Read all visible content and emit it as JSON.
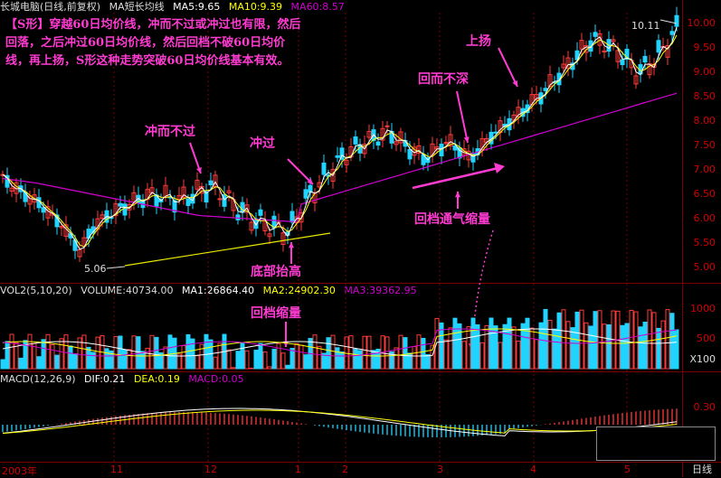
{
  "header": {
    "stock_name": "长城电脑(日线,前复权)",
    "ma_label": "MA短长均线",
    "ma5": "MA5:9.65",
    "ma10": "MA10:9.39",
    "ma60": "MA60:8.57"
  },
  "vol_header": {
    "vol": "VOL2(5,10,20)",
    "volume": "VOLUME:40734.00",
    "ma1": "MA1:26864.40",
    "ma2": "MA2:24902.30",
    "ma3": "MA3:39362.95"
  },
  "macd_header": {
    "macd": "MACD(12,26,9)",
    "dif": "DIF:0.21",
    "dea": "DEA:0.19",
    "macd_val": "MACD:0.05"
  },
  "axis": {
    "price_ticks": [
      "10.00",
      "9.50",
      "9.00",
      "8.50",
      "8.00",
      "7.50",
      "7.00",
      "6.50",
      "6.00",
      "5.50",
      "5.00"
    ],
    "vol_ticks": [
      "1000",
      "500"
    ],
    "vol_multiplier": "X100",
    "macd_tick": "0.30"
  },
  "labels": {
    "note": "【S形】穿越60日均价线，冲而不过或冲过也有限，然后回落，之后冲过60日均价线，然后回档不破60日均价线，再上扬，S形这种走势突破60日均价线基本有效。",
    "chong_er_bu_guo": "冲而不过",
    "chong_guo": "冲过",
    "di_bu_tai_gao": "底部抬高",
    "hui_er_bu_shen": "回而不深",
    "shang_yang": "上扬",
    "hui_dang_tong_qi": "回档通气缩量",
    "hui_dang_suo_liang": "回档缩量",
    "low_price": "5.06",
    "high_price": "10.11"
  },
  "footer": {
    "year": "2003年",
    "months": [
      "11",
      "12",
      "1",
      "2",
      "3",
      "4",
      "5"
    ],
    "period": "日线"
  },
  "colors": {
    "up": "#ff3b3b",
    "down": "#21d4ff",
    "ma5": "#ffffff",
    "ma10": "#ffff00",
    "ma60": "#d000d0",
    "annotation": "#ff3bd2",
    "grid": "#7a0000"
  }
}
